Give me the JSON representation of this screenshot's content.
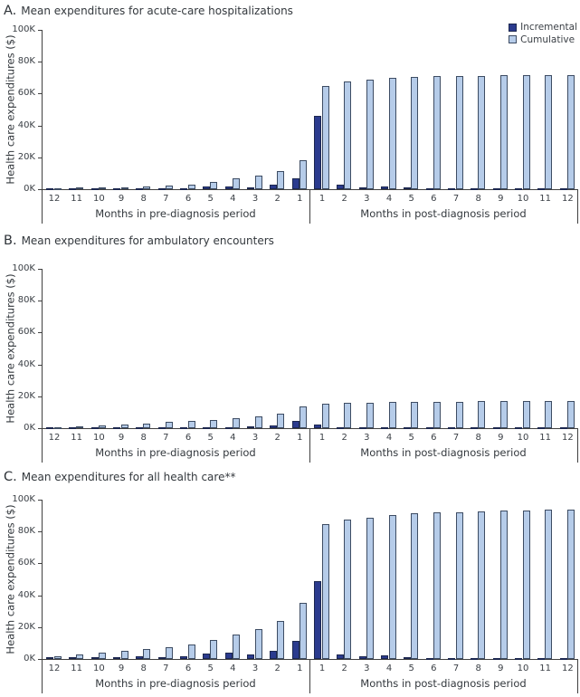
{
  "colors": {
    "incremental": "#2b3b8e",
    "incremental_border": "#1c274f",
    "cumulative": "#b6cce9",
    "cumulative_border": "#3d4c63",
    "axis": "#404040",
    "text": "#3a3f45"
  },
  "legend": {
    "items": [
      {
        "label": "Incremental",
        "swatch": "incremental"
      },
      {
        "label": "Cumulative",
        "swatch": "cumulative"
      }
    ]
  },
  "axis": {
    "y_label": "Health care expenditures ($)",
    "y_ticks": [
      "100K",
      "80K",
      "60K",
      "40K",
      "20K",
      "0K"
    ],
    "y_tick_values": [
      100,
      80,
      60,
      40,
      20,
      0
    ],
    "y_unit": "thousands of dollars (K)",
    "ylim": [
      0,
      100
    ]
  },
  "chart_data": [
    {
      "type": "bar",
      "letter": "A.",
      "title": "Mean expenditures for acute-care hospitalizations",
      "ylabel": "Health care expenditures ($)",
      "ylim": [
        0,
        100
      ],
      "y_unit": "K$",
      "legend_position": "top-right",
      "groups": [
        {
          "label": "Months in pre-diagnosis period",
          "categories": [
            "12",
            "11",
            "10",
            "9",
            "8",
            "7",
            "6",
            "5",
            "4",
            "3",
            "2",
            "1"
          ],
          "series": [
            {
              "name": "Incremental",
              "values": [
                0.4,
                0.4,
                0.2,
                0.2,
                0.5,
                0.3,
                0.7,
                1.9,
                1.9,
                1.2,
                2.6,
                6.6
              ]
            },
            {
              "name": "Cumulative",
              "values": [
                0.5,
                1.0,
                1.1,
                1.4,
                1.8,
                2.2,
                2.8,
                4.5,
                6.6,
                8.5,
                11.6,
                18.4
              ]
            }
          ]
        },
        {
          "label": "Months in post-diagnosis period",
          "categories": [
            "1",
            "2",
            "3",
            "4",
            "5",
            "6",
            "7",
            "8",
            "9",
            "10",
            "11",
            "12"
          ],
          "series": [
            {
              "name": "Incremental",
              "values": [
                46.3,
                2.7,
                1.4,
                1.9,
                0.9,
                0.6,
                0.4,
                0.3,
                0.4,
                0.3,
                0.2,
                0.2
              ]
            },
            {
              "name": "Cumulative",
              "values": [
                65.0,
                67.4,
                68.5,
                69.7,
                70.4,
                70.9,
                71.1,
                71.3,
                71.5,
                71.6,
                71.7,
                71.8
              ]
            }
          ]
        }
      ]
    },
    {
      "type": "bar",
      "letter": "B.",
      "title": "Mean expenditures for ambulatory encounters",
      "ylabel": "Health care expenditures ($)",
      "ylim": [
        0,
        100
      ],
      "y_unit": "K$",
      "groups": [
        {
          "label": "Months in pre-diagnosis period",
          "categories": [
            "12",
            "11",
            "10",
            "9",
            "8",
            "7",
            "6",
            "5",
            "4",
            "3",
            "2",
            "1"
          ],
          "series": [
            {
              "name": "Incremental",
              "values": [
                0.5,
                0.5,
                0.5,
                0.5,
                0.5,
                0.4,
                0.5,
                0.6,
                0.8,
                1.0,
                1.6,
                4.6
              ]
            },
            {
              "name": "Cumulative",
              "values": [
                0.6,
                1.1,
                1.7,
                2.4,
                3.1,
                3.7,
                4.4,
                5.2,
                6.3,
                7.5,
                9.1,
                13.6
              ]
            }
          ]
        },
        {
          "label": "Months in post-diagnosis period",
          "categories": [
            "1",
            "2",
            "3",
            "4",
            "5",
            "6",
            "7",
            "8",
            "9",
            "10",
            "11",
            "12"
          ],
          "series": [
            {
              "name": "Incremental",
              "values": [
                2.3,
                0.6,
                0.3,
                0.4,
                0.3,
                0.3,
                0.2,
                0.2,
                0.2,
                0.2,
                0.2,
                0.2
              ]
            },
            {
              "name": "Cumulative",
              "values": [
                15.4,
                15.9,
                16.1,
                16.3,
                16.5,
                16.6,
                16.7,
                16.8,
                16.9,
                17.0,
                17.1,
                17.3
              ]
            }
          ]
        }
      ]
    },
    {
      "type": "bar",
      "letter": "C.",
      "title": "Mean expenditures for all health care**",
      "ylabel": "Health care expenditures ($)",
      "ylim": [
        0,
        100
      ],
      "y_unit": "K$",
      "groups": [
        {
          "label": "Months in pre-diagnosis period",
          "categories": [
            "12",
            "11",
            "10",
            "9",
            "8",
            "7",
            "6",
            "5",
            "4",
            "3",
            "2",
            "1"
          ],
          "series": [
            {
              "name": "Incremental",
              "values": [
                1.4,
                1.3,
                1.2,
                1.0,
                1.5,
                1.2,
                1.8,
                3.2,
                3.8,
                3.0,
                5.2,
                11.3
              ]
            },
            {
              "name": "Cumulative",
              "values": [
                1.6,
                2.8,
                3.9,
                4.9,
                6.2,
                7.4,
                9.0,
                12.0,
                15.5,
                18.8,
                23.8,
                35.3
              ]
            }
          ]
        },
        {
          "label": "Months in post-diagnosis period",
          "categories": [
            "1",
            "2",
            "3",
            "4",
            "5",
            "6",
            "7",
            "8",
            "9",
            "10",
            "11",
            "12"
          ],
          "series": [
            {
              "name": "Incremental",
              "values": [
                48.8,
                3.1,
                1.7,
                2.1,
                1.4,
                0.8,
                0.5,
                0.4,
                0.6,
                0.4,
                0.3,
                0.3
              ]
            },
            {
              "name": "Cumulative",
              "values": [
                84.5,
                87.4,
                88.9,
                90.2,
                91.2,
                91.8,
                92.3,
                92.7,
                93.1,
                93.4,
                93.7,
                94.0
              ]
            }
          ]
        }
      ]
    }
  ]
}
